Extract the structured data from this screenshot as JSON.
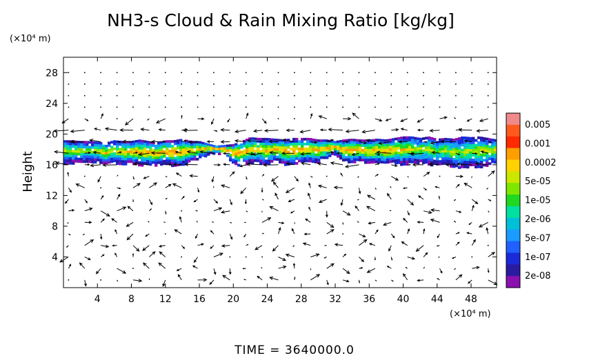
{
  "chart_data": {
    "type": "heatmap",
    "title": "NH3-s Cloud & Rain Mixing Ratio [kg/kg]",
    "ylabel": "Height",
    "y_unit": "(×10⁴ m)",
    "x_unit": "(×10⁴ m)",
    "footer": "TIME = 3640000.0",
    "xlim": [
      0,
      51
    ],
    "ylim": [
      0,
      30
    ],
    "x_ticks": [
      4,
      8,
      12,
      16,
      20,
      24,
      28,
      32,
      36,
      40,
      44,
      48
    ],
    "y_ticks": [
      4,
      8,
      12,
      16,
      20,
      24,
      28
    ],
    "overlay": "wind vectors",
    "colorbar": {
      "labels": [
        "0.005",
        "0.001",
        "0.0002",
        "5e-05",
        "1e-05",
        "2e-06",
        "5e-07",
        "1e-07",
        "2e-08"
      ],
      "colors": [
        "#f08a8a",
        "#ff5a1e",
        "#ff2a00",
        "#ff9e00",
        "#ffd200",
        "#cce600",
        "#7fe600",
        "#20d820",
        "#00e0a0",
        "#00c0d8",
        "#1a9bff",
        "#2060ff",
        "#1a2ad8",
        "#2a1aa0",
        "#8a10b0"
      ]
    },
    "cloud_layer": {
      "y_bottom": [
        16.3,
        16.3,
        16.4,
        16.5,
        16.5,
        16.2,
        16.4,
        16.1,
        16.3,
        16.0,
        16.1,
        16.0,
        16.3,
        16.0,
        15.9,
        16.6,
        16.9,
        17.4,
        17.6,
        17.4,
        16.3,
        16.0,
        16.4,
        16.4,
        16.0,
        16.7,
        16.2,
        16.0,
        16.4,
        16.5,
        16.4,
        16.9,
        17.5,
        16.5,
        16.4,
        16.7,
        16.2,
        16.4,
        16.2,
        16.4,
        16.1,
        16.4,
        16.3,
        16.2,
        16.0,
        16.2,
        15.8,
        15.6,
        15.9,
        15.8,
        16.1,
        16.4
      ],
      "y_top": [
        19.2,
        19.2,
        19.1,
        19.1,
        19.0,
        18.9,
        19.2,
        19.1,
        19.1,
        19.3,
        19.1,
        18.9,
        19.2,
        19.2,
        19.4,
        19.1,
        19.1,
        18.8,
        18.5,
        18.6,
        18.7,
        19.1,
        19.6,
        19.5,
        19.5,
        19.4,
        19.3,
        19.5,
        19.5,
        19.5,
        19.3,
        19.3,
        19.1,
        19.3,
        19.4,
        19.3,
        19.3,
        19.4,
        19.3,
        19.5,
        19.7,
        19.7,
        19.5,
        19.7,
        19.4,
        19.5,
        19.4,
        19.7,
        19.6,
        19.7,
        19.5,
        19.3
      ],
      "core_max": [
        0.5,
        0.55,
        0.5,
        0.55,
        0.45,
        0.4,
        0.45,
        0.4,
        0.35,
        0.3,
        0.3,
        0.25,
        0.25,
        0.2,
        0.3,
        0.35,
        0.3,
        0.3,
        0.25,
        0.15,
        0.2,
        0.25,
        0.35,
        0.4,
        0.35,
        0.3,
        0.25,
        0.3,
        0.3,
        0.35,
        0.3,
        0.25,
        0.3,
        0.3,
        0.2,
        0.25,
        0.3,
        0.3,
        0.3,
        0.35,
        0.4,
        0.45,
        0.5,
        0.55,
        0.6,
        0.55,
        0.5,
        0.55,
        0.5,
        0.45,
        0.5,
        0.45
      ]
    }
  }
}
